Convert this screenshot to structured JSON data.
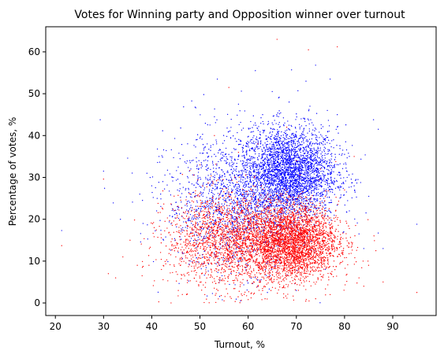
{
  "chart_data": {
    "type": "scatter",
    "title": "Votes for Winning party and Opposition winner over turnout",
    "xlabel": "Turnout, %",
    "ylabel": "Percentage of votes, %",
    "xlim": [
      18,
      99
    ],
    "ylim": [
      -3,
      66
    ],
    "xticks": [
      20,
      30,
      40,
      50,
      60,
      70,
      80,
      90
    ],
    "yticks": [
      0,
      10,
      20,
      30,
      40,
      50,
      60
    ],
    "grid": false,
    "legend": "none",
    "series": [
      {
        "color": "#0000ff",
        "points": [
          [
            21.3,
            17.3
          ],
          [
            29.3,
            43.8
          ],
          [
            30.0,
            31.5
          ],
          [
            30.2,
            27.4
          ],
          [
            32.0,
            23.9
          ],
          [
            33.5,
            20.0
          ],
          [
            35.0,
            34.6
          ],
          [
            36.0,
            24.1
          ],
          [
            37.5,
            26.0
          ],
          [
            38.2,
            19.0
          ],
          [
            39.0,
            31.0
          ],
          [
            40.0,
            28.0
          ],
          [
            41.0,
            22.0
          ],
          [
            41.5,
            35.0
          ],
          [
            42.3,
            29.0
          ],
          [
            43.0,
            36.4
          ],
          [
            44.5,
            30.0
          ],
          [
            45.0,
            24.0
          ],
          [
            46.0,
            41.8
          ],
          [
            47.0,
            27.0
          ],
          [
            48.3,
            34.0
          ],
          [
            49.0,
            46.8
          ],
          [
            50.0,
            30.0
          ],
          [
            50.8,
            49.8
          ],
          [
            51.5,
            38.0
          ],
          [
            52.0,
            25.0
          ],
          [
            53.0,
            44.5
          ],
          [
            53.6,
            53.5
          ],
          [
            54.5,
            36.0
          ],
          [
            55.0,
            28.0
          ],
          [
            56.0,
            41.0
          ],
          [
            57.0,
            32.0
          ],
          [
            58.0,
            47.5
          ],
          [
            59.0,
            37.0
          ],
          [
            60.0,
            26.0
          ],
          [
            61.0,
            39.5
          ],
          [
            61.5,
            55.5
          ],
          [
            62.0,
            33.0
          ],
          [
            63.0,
            45.0
          ],
          [
            64.0,
            29.0
          ],
          [
            64.5,
            38.0
          ],
          [
            65.0,
            50.5
          ],
          [
            66.0,
            31.0
          ],
          [
            66.5,
            42.0
          ],
          [
            67.0,
            36.0
          ],
          [
            67.5,
            27.0
          ],
          [
            68.0,
            33.5
          ],
          [
            68.5,
            48.0
          ],
          [
            69.0,
            55.7
          ],
          [
            69.5,
            30.0
          ],
          [
            70.0,
            40.0
          ],
          [
            70.5,
            35.0
          ],
          [
            71.0,
            44.0
          ],
          [
            71.5,
            28.5
          ],
          [
            72.0,
            53.0
          ],
          [
            72.5,
            32.0
          ],
          [
            73.0,
            38.5
          ],
          [
            73.5,
            42.5
          ],
          [
            74.0,
            56.8
          ],
          [
            74.5,
            30.0
          ],
          [
            75.0,
            36.5
          ],
          [
            76.0,
            34.0
          ],
          [
            76.5,
            41.0
          ],
          [
            77.0,
            53.5
          ],
          [
            78.0,
            29.0
          ],
          [
            78.5,
            45.0
          ],
          [
            79.0,
            27.0
          ],
          [
            80.0,
            35.5
          ],
          [
            81.0,
            22.0
          ],
          [
            82.0,
            28.0
          ],
          [
            83.0,
            16.5
          ],
          [
            84.0,
            13.0
          ],
          [
            86.0,
            43.8
          ],
          [
            87.0,
            41.5
          ],
          [
            88.0,
            13.0
          ],
          [
            95.0,
            18.8
          ],
          [
            62.0,
            5.5
          ],
          [
            58.0,
            9.0
          ],
          [
            66.0,
            7.5
          ],
          [
            70.0,
            3.0
          ],
          [
            54.0,
            12.0
          ],
          [
            76.0,
            8.0
          ],
          [
            48.0,
            10.0
          ],
          [
            64.0,
            2.5
          ]
        ],
        "clusters": [
          {
            "cx": 68.5,
            "cy": 31.0,
            "sx": 5.0,
            "sy": 5.5,
            "n": 3200
          },
          {
            "cx": 57.0,
            "cy": 24.0,
            "sx": 7.0,
            "sy": 8.0,
            "n": 1500
          }
        ]
      },
      {
        "color": "#ff0000",
        "points": [
          [
            21.3,
            13.7
          ],
          [
            30.0,
            29.6
          ],
          [
            31.0,
            7.0
          ],
          [
            32.5,
            6.0
          ],
          [
            34.0,
            11.0
          ],
          [
            35.5,
            15.0
          ],
          [
            37.0,
            9.0
          ],
          [
            38.0,
            6.5
          ],
          [
            39.5,
            13.0
          ],
          [
            40.5,
            18.0
          ],
          [
            42.0,
            8.0
          ],
          [
            44.0,
            0.0
          ],
          [
            45.5,
            3.0
          ],
          [
            47.0,
            14.0
          ],
          [
            48.0,
            26.0
          ],
          [
            50.0,
            33.0
          ],
          [
            51.0,
            2.0
          ],
          [
            53.0,
            40.0
          ],
          [
            55.0,
            0.5
          ],
          [
            56.0,
            51.5
          ],
          [
            58.0,
            36.0
          ],
          [
            60.0,
            0.8
          ],
          [
            62.0,
            38.0
          ],
          [
            63.5,
            1.0
          ],
          [
            66.0,
            63.0
          ],
          [
            68.0,
            42.0
          ],
          [
            70.0,
            34.0
          ],
          [
            72.5,
            60.5
          ],
          [
            74.0,
            1.0
          ],
          [
            75.0,
            32.0
          ],
          [
            77.0,
            2.0
          ],
          [
            78.5,
            61.2
          ],
          [
            80.0,
            27.0
          ],
          [
            82.0,
            35.0
          ],
          [
            83.0,
            6.0
          ],
          [
            84.0,
            4.0
          ],
          [
            85.0,
            9.0
          ],
          [
            86.5,
            12.5
          ],
          [
            88.0,
            5.0
          ],
          [
            95.0,
            2.5
          ],
          [
            60.5,
            20.0
          ],
          [
            72.0,
            22.0
          ]
        ],
        "clusters": [
          {
            "cx": 69.0,
            "cy": 14.5,
            "sx": 4.8,
            "sy": 4.5,
            "n": 3300
          },
          {
            "cx": 56.0,
            "cy": 15.0,
            "sx": 6.5,
            "sy": 5.5,
            "n": 1900
          }
        ]
      }
    ]
  }
}
